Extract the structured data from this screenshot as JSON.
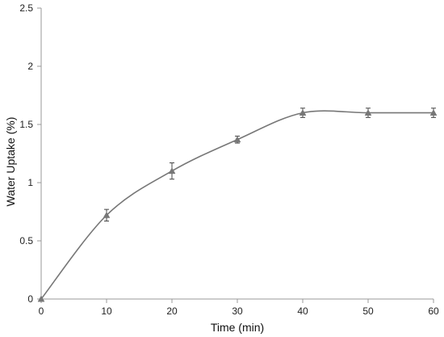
{
  "chart_data": {
    "type": "line",
    "title": "",
    "xlabel": "Time (min)",
    "ylabel": "Water Uptake (%)",
    "x": [
      0,
      10,
      20,
      30,
      40,
      50,
      60
    ],
    "series": [
      {
        "values": [
          0,
          0.72,
          1.1,
          1.37,
          1.6,
          1.6,
          1.6
        ],
        "error": [
          0,
          0.05,
          0.07,
          0.03,
          0.04,
          0.04,
          0.04
        ],
        "marker": "triangle",
        "smooth": true
      }
    ],
    "xlim": [
      0,
      60
    ],
    "ylim": [
      0,
      2.5
    ],
    "x_ticks": [
      "0",
      "10",
      "20",
      "30",
      "40",
      "50",
      "60"
    ],
    "y_ticks": [
      "0",
      "0.5",
      "1",
      "1.5",
      "2",
      "2.5"
    ],
    "grid": false,
    "legend": "none",
    "colors": {
      "line": "#777777",
      "marker": "#777777",
      "axis": "#999999",
      "error_bar": "#444444"
    }
  }
}
